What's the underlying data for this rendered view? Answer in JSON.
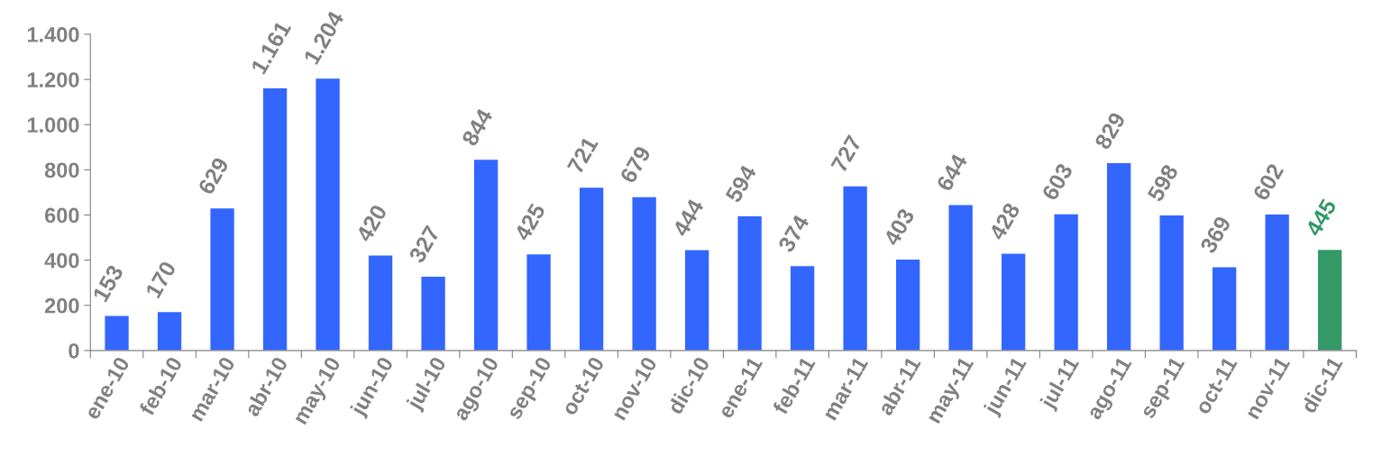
{
  "chart_data": {
    "type": "bar",
    "categories": [
      "ene-10",
      "feb-10",
      "mar-10",
      "abr-10",
      "may-10",
      "jun-10",
      "jul-10",
      "ago-10",
      "sep-10",
      "oct-10",
      "nov-10",
      "dic-10",
      "ene-11",
      "feb-11",
      "mar-11",
      "abr-11",
      "may-11",
      "jun-11",
      "jul-11",
      "ago-11",
      "sep-11",
      "oct-11",
      "nov-11",
      "dic-11"
    ],
    "values": [
      153,
      170,
      629,
      1161,
      1204,
      420,
      327,
      844,
      425,
      721,
      679,
      444,
      594,
      374,
      727,
      403,
      644,
      428,
      603,
      829,
      598,
      369,
      602,
      445
    ],
    "value_labels": [
      "153",
      "170",
      "629",
      "1.161",
      "1.204",
      "420",
      "327",
      "844",
      "425",
      "721",
      "679",
      "444",
      "594",
      "374",
      "727",
      "403",
      "644",
      "428",
      "603",
      "829",
      "598",
      "369",
      "602",
      "445"
    ],
    "colors": [
      "#3366ff",
      "#3366ff",
      "#3366ff",
      "#3366ff",
      "#3366ff",
      "#3366ff",
      "#3366ff",
      "#3366ff",
      "#3366ff",
      "#3366ff",
      "#3366ff",
      "#3366ff",
      "#3366ff",
      "#3366ff",
      "#3366ff",
      "#3366ff",
      "#3366ff",
      "#3366ff",
      "#3366ff",
      "#3366ff",
      "#3366ff",
      "#3366ff",
      "#3366ff",
      "#339966"
    ],
    "ylim": [
      0,
      1400
    ],
    "yticks": [
      0,
      200,
      400,
      600,
      800,
      {
        "value": 1000,
        "label": "1.000"
      },
      {
        "value": 1200,
        "label": "1.200"
      },
      {
        "value": 1400,
        "label": "1.400"
      }
    ],
    "grid": false,
    "legend": false
  }
}
